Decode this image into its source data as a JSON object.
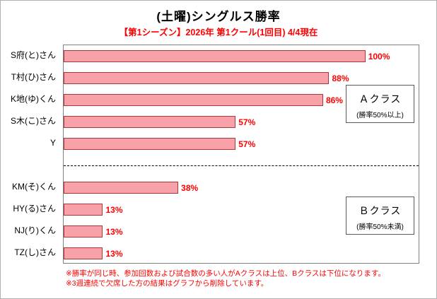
{
  "title": "(土曜)シングルス勝率",
  "subtitle": "【第1シーズン】2026年 第1クール(1回目) 4/4現在",
  "chart_data": {
    "type": "bar",
    "orientation": "horizontal",
    "categories": [
      "S府(と)さん",
      "T村(ひ)さん",
      "K地(ゆ)くん",
      "S木(こ)さん",
      "Y",
      "KM(そ)くん",
      "HY(る)さん",
      "NJ(り)くん",
      "TZ(し)さん"
    ],
    "values": [
      100,
      88,
      86,
      57,
      57,
      38,
      13,
      13,
      13
    ],
    "value_labels": [
      "100%",
      "88%",
      "86%",
      "57%",
      "57%",
      "38%",
      "13%",
      "13%",
      "13%"
    ],
    "xlim": [
      0,
      118
    ],
    "grid": false,
    "divider_after_category": "Y",
    "bar_fill": "#F9A1A9",
    "bar_border": "#AA3838",
    "value_label_color": "#FF0000",
    "legend_position": "none",
    "groups": [
      {
        "label": "Ａクラス",
        "sublabel": "(勝率50%以上)"
      },
      {
        "label": "Ｂクラス",
        "sublabel": "(勝率50%未満)"
      }
    ]
  },
  "notes": [
    "※勝率が同じ時、参加回数および試合数の多い人がAクラスは上位、Bクラスは下位になります。",
    "※3週連続で欠席した方の結果はグラフから削除しています。"
  ],
  "colors": {
    "accent_red": "#FF0000",
    "text": "#000000",
    "plot_border": "#808080"
  }
}
